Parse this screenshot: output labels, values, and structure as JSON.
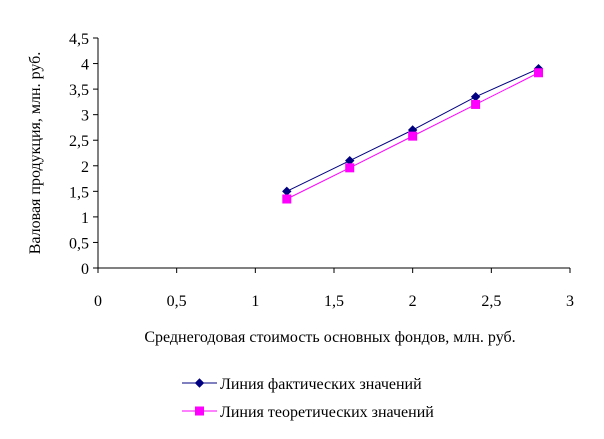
{
  "chart_data": {
    "type": "line",
    "xlabel": "Среднегодовая стоимость основных фондов, млн. руб.",
    "ylabel": "Валовая продукция, млн. руб.",
    "xlim": [
      0,
      3
    ],
    "ylim": [
      0,
      4.5
    ],
    "xticks": [
      {
        "value": 0,
        "label": "0"
      },
      {
        "value": 0.5,
        "label": "0,5"
      },
      {
        "value": 1,
        "label": "1"
      },
      {
        "value": 1.5,
        "label": "1,5"
      },
      {
        "value": 2,
        "label": "2"
      },
      {
        "value": 2.5,
        "label": "2,5"
      },
      {
        "value": 3,
        "label": "3"
      }
    ],
    "yticks": [
      {
        "value": 0,
        "label": "0"
      },
      {
        "value": 0.5,
        "label": "0,5"
      },
      {
        "value": 1,
        "label": "1"
      },
      {
        "value": 1.5,
        "label": "1,5"
      },
      {
        "value": 2,
        "label": "2"
      },
      {
        "value": 2.5,
        "label": "2,5"
      },
      {
        "value": 3,
        "label": "3"
      },
      {
        "value": 3.5,
        "label": "3,5"
      },
      {
        "value": 4,
        "label": "4"
      },
      {
        "value": 4.5,
        "label": "4,5"
      }
    ],
    "grid": false,
    "legend_position": "bottom",
    "series": [
      {
        "name": "Линия фактических значений",
        "color": "#000080",
        "marker": "diamond",
        "x": [
          1.2,
          1.6,
          2.0,
          2.4,
          2.8
        ],
        "y": [
          1.5,
          2.1,
          2.7,
          3.35,
          3.9
        ]
      },
      {
        "name": "Линия теоретических значений",
        "color": "#FF00FF",
        "marker": "square",
        "x": [
          1.2,
          1.6,
          2.0,
          2.4,
          2.8
        ],
        "y": [
          1.35,
          1.96,
          2.58,
          3.2,
          3.82
        ]
      }
    ]
  }
}
